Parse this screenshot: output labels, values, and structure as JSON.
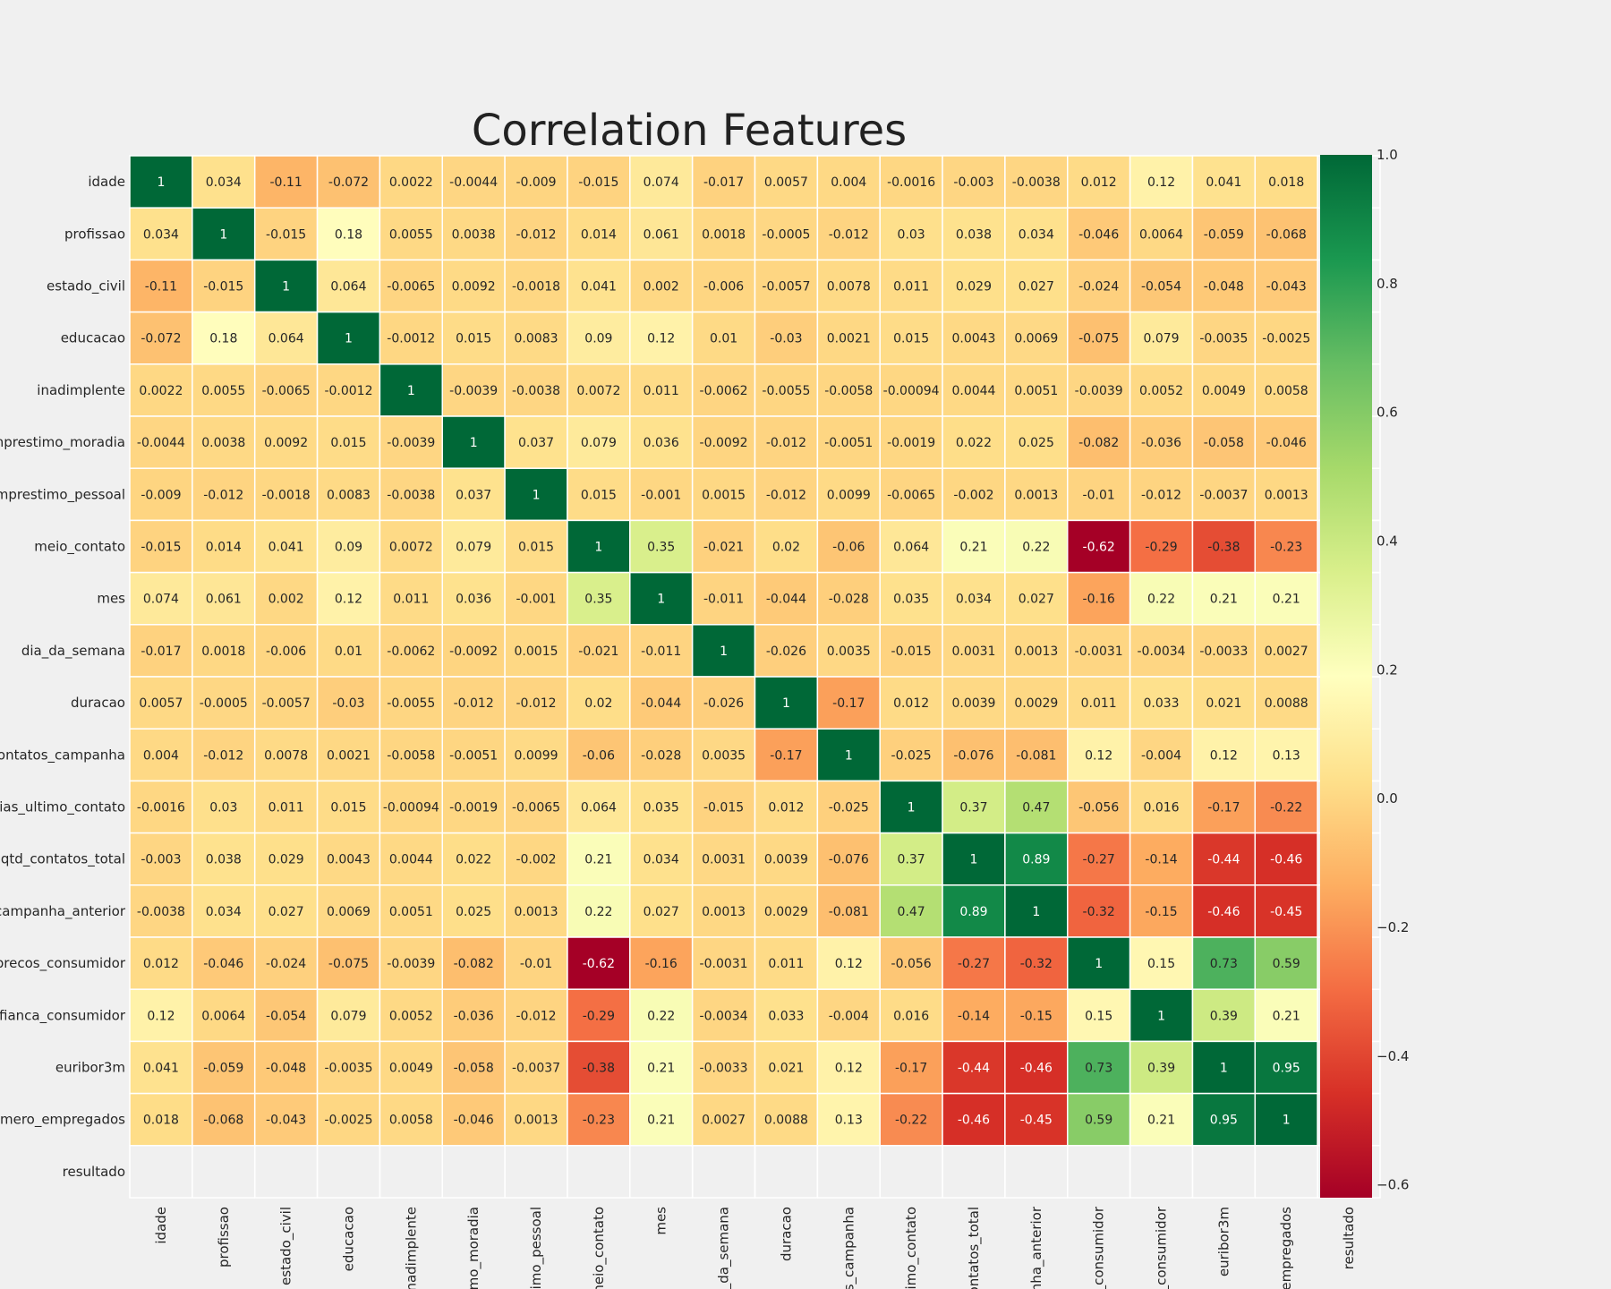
{
  "chart_data": {
    "type": "heatmap",
    "title": "Correlation Features",
    "labels": [
      "idade",
      "profissao",
      "estado_civil",
      "educacao",
      "inadimplente",
      "emprestimo_moradia",
      "emprestimo_pessoal",
      "meio_contato",
      "mes",
      "dia_da_semana",
      "duracao",
      "qtd_contatos_campanha",
      "dias_ultimo_contato",
      "qtd_contatos_total",
      "campanha_anterior",
      "indice_precos_consumidor",
      "indice_confianca_consumidor",
      "euribor3m",
      "numero_empregados",
      "resultado"
    ],
    "row_labels_visible": [
      "idade",
      "profissao",
      "estado_civil",
      "educacao",
      "inadimplente",
      "mprestimo_moradia",
      "emprestimo_pessoal",
      "meio_contato",
      "mes",
      "dia_da_semana",
      "duracao",
      "contatos_campanha",
      "dias_ultimo_contato",
      "qtd_contatos_total",
      "campanha_anterior",
      "_precos_consumidor",
      "nfianca_consumidor",
      "euribor3m",
      "umero_empregados",
      "resultado"
    ],
    "col_labels_visible": [
      "idade",
      "profissao",
      "estado_civil",
      "educacao",
      "inadimplente",
      "timo_moradia",
      "stimo_pessoal",
      "meio_contato",
      "mes",
      "a_da_semana",
      "duracao",
      "os_campanha",
      "ltimo_contato",
      "contatos_total",
      "anha_anterior",
      "s_consumidor",
      "a_consumidor",
      "euribor3m",
      "_empregados",
      "resultado"
    ],
    "matrix": [
      [
        "1",
        "0.034",
        "-0.11",
        "-0.072",
        "0.0022",
        "-0.0044",
        "-0.009",
        "-0.015",
        "0.074",
        "-0.017",
        "0.0057",
        "0.004",
        "-0.0016",
        "-0.003",
        "-0.0038",
        "0.012",
        "0.12",
        "0.041",
        "0.018",
        null
      ],
      [
        "0.034",
        "1",
        "-0.015",
        "0.18",
        "0.0055",
        "0.0038",
        "-0.012",
        "0.014",
        "0.061",
        "0.0018",
        "-0.0005",
        "-0.012",
        "0.03",
        "0.038",
        "0.034",
        "-0.046",
        "0.0064",
        "-0.059",
        "-0.068",
        null
      ],
      [
        "-0.11",
        "-0.015",
        "1",
        "0.064",
        "-0.0065",
        "0.0092",
        "-0.0018",
        "0.041",
        "0.002",
        "-0.006",
        "-0.0057",
        "0.0078",
        "0.011",
        "0.029",
        "0.027",
        "-0.024",
        "-0.054",
        "-0.048",
        "-0.043",
        null
      ],
      [
        "-0.072",
        "0.18",
        "0.064",
        "1",
        "-0.0012",
        "0.015",
        "0.0083",
        "0.09",
        "0.12",
        "0.01",
        "-0.03",
        "0.0021",
        "0.015",
        "0.0043",
        "0.0069",
        "-0.075",
        "0.079",
        "-0.0035",
        "-0.0025",
        null
      ],
      [
        "0.0022",
        "0.0055",
        "-0.0065",
        "-0.0012",
        "1",
        "-0.0039",
        "-0.0038",
        "0.0072",
        "0.011",
        "-0.0062",
        "-0.0055",
        "-0.0058",
        "-0.00094",
        "0.0044",
        "0.0051",
        "-0.0039",
        "0.0052",
        "0.0049",
        "0.0058",
        null
      ],
      [
        "-0.0044",
        "0.0038",
        "0.0092",
        "0.015",
        "-0.0039",
        "1",
        "0.037",
        "0.079",
        "0.036",
        "-0.0092",
        "-0.012",
        "-0.0051",
        "-0.0019",
        "0.022",
        "0.025",
        "-0.082",
        "-0.036",
        "-0.058",
        "-0.046",
        null
      ],
      [
        "-0.009",
        "-0.012",
        "-0.0018",
        "0.0083",
        "-0.0038",
        "0.037",
        "1",
        "0.015",
        "-0.001",
        "0.0015",
        "-0.012",
        "0.0099",
        "-0.0065",
        "-0.002",
        "0.0013",
        "-0.01",
        "-0.012",
        "-0.0037",
        "0.0013",
        null
      ],
      [
        "-0.015",
        "0.014",
        "0.041",
        "0.09",
        "0.0072",
        "0.079",
        "0.015",
        "1",
        "0.35",
        "-0.021",
        "0.02",
        "-0.06",
        "0.064",
        "0.21",
        "0.22",
        "-0.62",
        "-0.29",
        "-0.38",
        "-0.23",
        null
      ],
      [
        "0.074",
        "0.061",
        "0.002",
        "0.12",
        "0.011",
        "0.036",
        "-0.001",
        "0.35",
        "1",
        "-0.011",
        "-0.044",
        "-0.028",
        "0.035",
        "0.034",
        "0.027",
        "-0.16",
        "0.22",
        "0.21",
        "0.21",
        null
      ],
      [
        "-0.017",
        "0.0018",
        "-0.006",
        "0.01",
        "-0.0062",
        "-0.0092",
        "0.0015",
        "-0.021",
        "-0.011",
        "1",
        "-0.026",
        "0.0035",
        "-0.015",
        "0.0031",
        "0.0013",
        "-0.0031",
        "-0.0034",
        "-0.0033",
        "0.0027",
        null
      ],
      [
        "0.0057",
        "-0.0005",
        "-0.0057",
        "-0.03",
        "-0.0055",
        "-0.012",
        "-0.012",
        "0.02",
        "-0.044",
        "-0.026",
        "1",
        "-0.17",
        "0.012",
        "0.0039",
        "0.0029",
        "0.011",
        "0.033",
        "0.021",
        "0.0088",
        null
      ],
      [
        "0.004",
        "-0.012",
        "0.0078",
        "0.0021",
        "-0.0058",
        "-0.0051",
        "0.0099",
        "-0.06",
        "-0.028",
        "0.0035",
        "-0.17",
        "1",
        "-0.025",
        "-0.076",
        "-0.081",
        "0.12",
        "-0.004",
        "0.12",
        "0.13",
        null
      ],
      [
        "-0.0016",
        "0.03",
        "0.011",
        "0.015",
        "-0.00094",
        "-0.0019",
        "-0.0065",
        "0.064",
        "0.035",
        "-0.015",
        "0.012",
        "-0.025",
        "1",
        "0.37",
        "0.47",
        "-0.056",
        "0.016",
        "-0.17",
        "-0.22",
        null
      ],
      [
        "-0.003",
        "0.038",
        "0.029",
        "0.0043",
        "0.0044",
        "0.022",
        "-0.002",
        "0.21",
        "0.034",
        "0.0031",
        "0.0039",
        "-0.076",
        "0.37",
        "1",
        "0.89",
        "-0.27",
        "-0.14",
        "-0.44",
        "-0.46",
        null
      ],
      [
        "-0.0038",
        "0.034",
        "0.027",
        "0.0069",
        "0.0051",
        "0.025",
        "0.0013",
        "0.22",
        "0.027",
        "0.0013",
        "0.0029",
        "-0.081",
        "0.47",
        "0.89",
        "1",
        "-0.32",
        "-0.15",
        "-0.46",
        "-0.45",
        null
      ],
      [
        "0.012",
        "-0.046",
        "-0.024",
        "-0.075",
        "-0.0039",
        "-0.082",
        "-0.01",
        "-0.62",
        "-0.16",
        "-0.0031",
        "0.011",
        "0.12",
        "-0.056",
        "-0.27",
        "-0.32",
        "1",
        "0.15",
        "0.73",
        "0.59",
        null
      ],
      [
        "0.12",
        "0.0064",
        "-0.054",
        "0.079",
        "0.0052",
        "-0.036",
        "-0.012",
        "-0.29",
        "0.22",
        "-0.0034",
        "0.033",
        "-0.004",
        "0.016",
        "-0.14",
        "-0.15",
        "0.15",
        "1",
        "0.39",
        "0.21",
        null
      ],
      [
        "0.041",
        "-0.059",
        "-0.048",
        "-0.0035",
        "0.0049",
        "-0.058",
        "-0.0037",
        "-0.38",
        "0.21",
        "-0.0033",
        "0.021",
        "0.12",
        "-0.17",
        "-0.44",
        "-0.46",
        "0.73",
        "0.39",
        "1",
        "0.95",
        null
      ],
      [
        "0.018",
        "-0.068",
        "-0.043",
        "-0.0025",
        "0.0058",
        "-0.046",
        "0.0013",
        "-0.23",
        "0.21",
        "0.0027",
        "0.0088",
        "0.13",
        "-0.22",
        "-0.46",
        "-0.45",
        "0.59",
        "0.21",
        "0.95",
        "1",
        null
      ],
      [
        null,
        null,
        null,
        null,
        null,
        null,
        null,
        null,
        null,
        null,
        null,
        null,
        null,
        null,
        null,
        null,
        null,
        null,
        null,
        null
      ]
    ],
    "colormap": "RdYlGn",
    "vmin": -0.62,
    "vmax": 1.0,
    "colorbar_ticks": [
      "1.0",
      "0.8",
      "0.6",
      "0.4",
      "0.2",
      "0.0",
      "−0.2",
      "−0.4",
      "−0.6"
    ],
    "colorbar_tick_values": [
      1.0,
      0.8,
      0.6,
      0.4,
      0.2,
      0.0,
      -0.2,
      -0.4,
      -0.6
    ],
    "grid": true
  }
}
